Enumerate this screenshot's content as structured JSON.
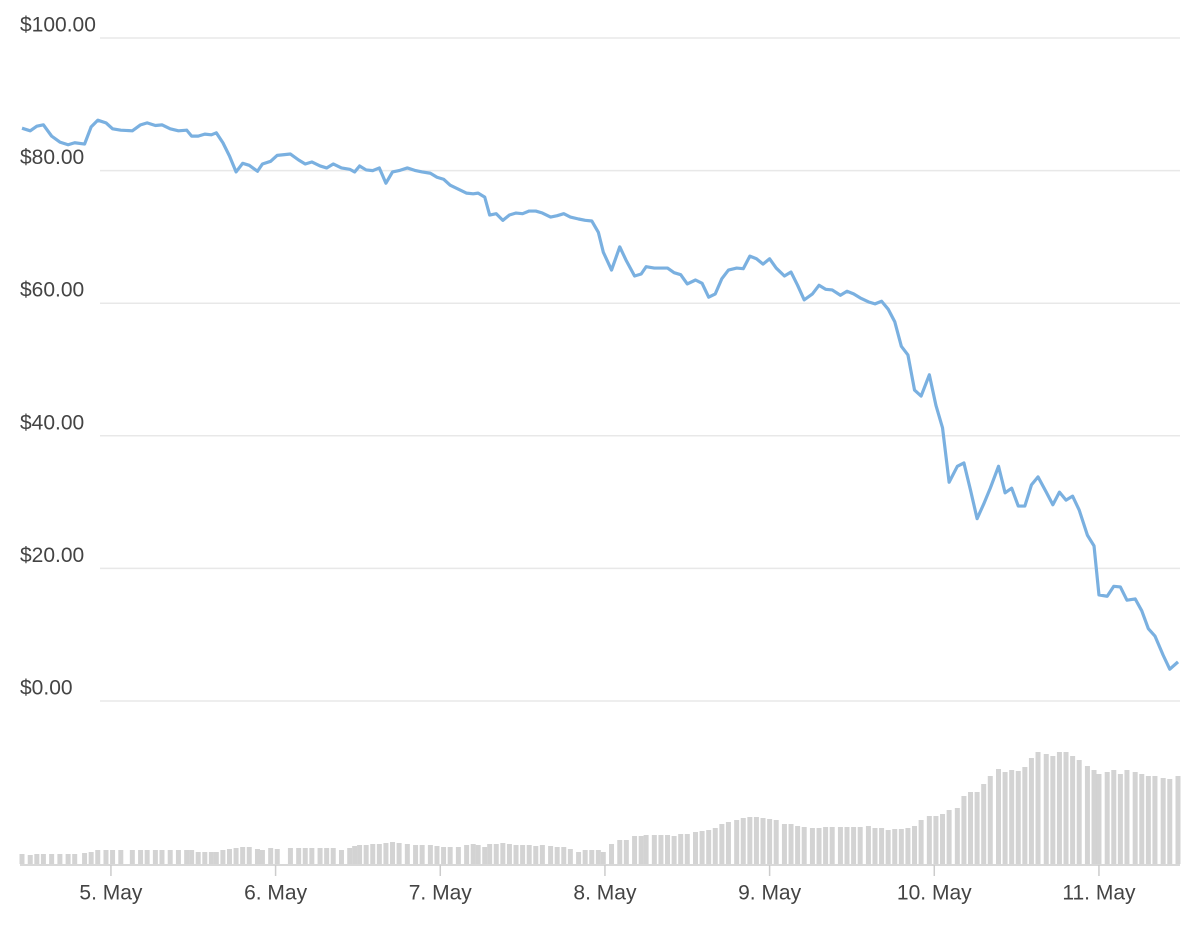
{
  "chart_data": {
    "type": "line",
    "x": [
      4.46,
      4.51,
      4.55,
      4.59,
      4.64,
      4.69,
      4.74,
      4.78,
      4.84,
      4.88,
      4.92,
      4.97,
      5.01,
      5.06,
      5.13,
      5.18,
      5.22,
      5.27,
      5.31,
      5.36,
      5.41,
      5.46,
      5.49,
      5.53,
      5.57,
      5.61,
      5.64,
      5.68,
      5.72,
      5.76,
      5.8,
      5.84,
      5.89,
      5.92,
      5.97,
      6.01,
      6.09,
      6.14,
      6.18,
      6.22,
      6.27,
      6.31,
      6.35,
      6.4,
      6.45,
      6.48,
      6.51,
      6.55,
      6.59,
      6.63,
      6.67,
      6.71,
      6.75,
      6.8,
      6.85,
      6.89,
      6.94,
      6.98,
      7.02,
      7.06,
      7.11,
      7.16,
      7.2,
      7.23,
      7.27,
      7.3,
      7.34,
      7.38,
      7.42,
      7.46,
      7.5,
      7.54,
      7.58,
      7.62,
      7.67,
      7.71,
      7.75,
      7.79,
      7.84,
      7.88,
      7.92,
      7.96,
      7.99,
      8.04,
      8.09,
      8.13,
      8.18,
      8.22,
      8.25,
      8.3,
      8.34,
      8.38,
      8.42,
      8.46,
      8.5,
      8.55,
      8.59,
      8.63,
      8.67,
      8.71,
      8.75,
      8.8,
      8.84,
      8.88,
      8.92,
      8.96,
      9.0,
      9.04,
      9.09,
      9.13,
      9.17,
      9.21,
      9.26,
      9.3,
      9.34,
      9.38,
      9.43,
      9.47,
      9.51,
      9.55,
      9.6,
      9.64,
      9.68,
      9.72,
      9.76,
      9.8,
      9.84,
      9.88,
      9.92,
      9.97,
      10.01,
      10.05,
      10.09,
      10.14,
      10.18,
      10.22,
      10.26,
      10.3,
      10.34,
      10.39,
      10.43,
      10.47,
      10.51,
      10.55,
      10.59,
      10.63,
      10.68,
      10.72,
      10.76,
      10.8,
      10.84,
      10.88,
      10.93,
      10.97,
      11.0,
      11.05,
      11.09,
      11.13,
      11.17,
      11.22,
      11.26,
      11.3,
      11.34,
      11.39,
      11.43,
      11.48
    ],
    "series": [
      {
        "color": "#7ab0e0",
        "values": [
          86.4,
          86.0,
          86.7,
          86.9,
          85.2,
          84.3,
          83.9,
          84.2,
          84.0,
          86.6,
          87.6,
          87.2,
          86.3,
          86.1,
          86.0,
          86.9,
          87.2,
          86.8,
          86.9,
          86.3,
          86.0,
          86.1,
          85.2,
          85.2,
          85.5,
          85.4,
          85.7,
          84.2,
          82.2,
          79.8,
          81.1,
          80.8,
          79.9,
          81.0,
          81.4,
          82.3,
          82.5,
          81.6,
          81.0,
          81.3,
          80.7,
          80.4,
          81.0,
          80.4,
          80.2,
          79.8,
          80.7,
          80.1,
          80.0,
          80.4,
          78.1,
          79.8,
          80.0,
          80.4,
          80.0,
          79.8,
          79.6,
          79.0,
          78.7,
          77.8,
          77.2,
          76.6,
          76.5,
          76.6,
          76.0,
          73.3,
          73.5,
          72.5,
          73.3,
          73.6,
          73.5,
          73.9,
          73.9,
          73.6,
          73.0,
          73.2,
          73.5,
          73.0,
          72.7,
          72.5,
          72.4,
          70.7,
          67.7,
          65.0,
          68.5,
          66.4,
          64.1,
          64.4,
          65.5,
          65.3,
          65.3,
          65.3,
          64.6,
          64.3,
          62.9,
          63.5,
          63.0,
          60.9,
          61.4,
          63.7,
          65.0,
          65.3,
          65.2,
          67.1,
          66.7,
          65.9,
          66.7,
          65.3,
          64.1,
          64.7,
          62.7,
          60.5,
          61.4,
          62.7,
          62.1,
          62.0,
          61.2,
          61.8,
          61.4,
          60.8,
          60.2,
          59.9,
          60.3,
          59.1,
          57.2,
          53.5,
          52.2,
          46.9,
          46.0,
          49.2,
          44.6,
          41.2,
          33.0,
          35.4,
          35.9,
          31.8,
          27.5,
          29.7,
          32.1,
          35.4,
          31.4,
          32.1,
          29.4,
          29.4,
          32.6,
          33.8,
          31.5,
          29.6,
          31.5,
          30.3,
          30.9,
          28.8,
          25.0,
          23.4,
          16.0,
          15.8,
          17.3,
          17.2,
          15.2,
          15.4,
          13.6,
          10.9,
          9.8,
          6.9,
          4.8,
          5.9
        ]
      },
      {
        "type": "bar",
        "axis": "y2",
        "color": "#d3d3d3",
        "values": [
          10,
          9,
          10,
          10,
          10,
          10,
          10,
          10,
          11,
          12,
          14,
          14,
          14,
          14,
          14,
          14,
          14,
          14,
          14,
          14,
          14,
          14,
          14,
          12,
          12,
          12,
          12,
          14,
          15,
          16,
          17,
          17,
          15,
          14,
          16,
          15,
          16,
          16,
          16,
          16,
          16,
          16,
          16,
          14,
          16,
          18,
          19,
          19,
          20,
          20,
          21,
          22,
          21,
          20,
          19,
          19,
          19,
          18,
          17,
          17,
          17,
          19,
          20,
          19,
          17,
          20,
          20,
          21,
          20,
          19,
          19,
          19,
          18,
          19,
          18,
          17,
          17,
          15,
          12,
          14,
          14,
          14,
          12,
          20,
          24,
          24,
          28,
          28,
          29,
          29,
          29,
          29,
          28,
          30,
          30,
          32,
          33,
          34,
          36,
          40,
          42,
          44,
          46,
          47,
          47,
          46,
          45,
          44,
          40,
          40,
          38,
          37,
          36,
          36,
          37,
          37,
          37,
          37,
          37,
          37,
          38,
          36,
          36,
          34,
          35,
          35,
          36,
          38,
          44,
          48,
          48,
          50,
          54,
          56,
          68,
          72,
          72,
          80,
          88,
          95,
          92,
          94,
          93,
          97,
          106,
          112,
          110,
          108,
          112,
          112,
          108,
          104,
          98,
          94,
          90,
          92,
          94,
          90,
          94,
          92,
          90,
          88,
          88,
          86,
          85,
          88
        ]
      }
    ],
    "xlim": [
      4.46,
      11.48
    ],
    "xticks": [
      {
        "value": 5,
        "label": "5. May"
      },
      {
        "value": 6,
        "label": "6. May"
      },
      {
        "value": 7,
        "label": "7. May"
      },
      {
        "value": 8,
        "label": "8. May"
      },
      {
        "value": 9,
        "label": "9. May"
      },
      {
        "value": 10,
        "label": "10. May"
      },
      {
        "value": 11,
        "label": "11. May"
      }
    ],
    "ylim": [
      0,
      100
    ],
    "yticks": [
      {
        "value": 0,
        "label": "$0.00"
      },
      {
        "value": 20,
        "label": "$20.00"
      },
      {
        "value": 40,
        "label": "$40.00"
      },
      {
        "value": 60,
        "label": "$60.00"
      },
      {
        "value": 80,
        "label": "$80.00"
      },
      {
        "value": 100,
        "label": "$100.00"
      }
    ],
    "y2lim": [
      0,
      120
    ],
    "grid": true
  }
}
